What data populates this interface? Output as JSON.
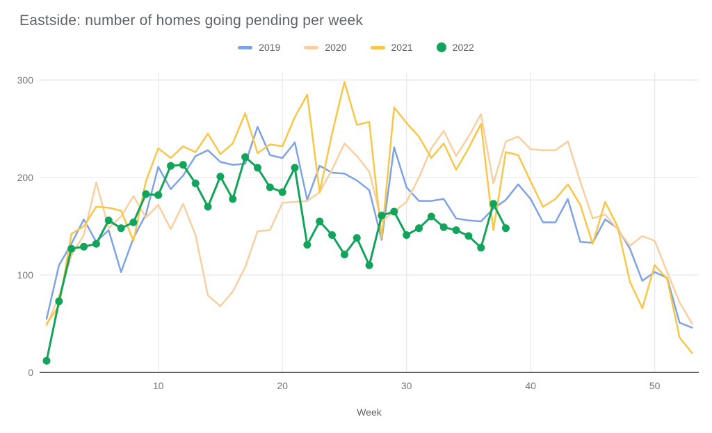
{
  "title": "Eastside: number of homes going pending per week",
  "legend": [
    {
      "label": "2019",
      "marker": "line"
    },
    {
      "label": "2020",
      "marker": "line"
    },
    {
      "label": "2021",
      "marker": "line"
    },
    {
      "label": "2022",
      "marker": "circle"
    }
  ],
  "colors": {
    "series_2019": "#7da3e6",
    "series_2020": "#f8cfa0",
    "series_2021": "#f8c648",
    "series_2022": "#12a45b",
    "gridline": "#e3e3e3",
    "axis_line": "#5f6368",
    "tick_text": "#757575",
    "title_text": "#5f6368",
    "axis_title_text": "#5f6368"
  },
  "chart_data": {
    "type": "line",
    "title": "Eastside: number of homes going pending per week",
    "xlabel": "Week",
    "ylabel": "",
    "x_start_week": 1,
    "x_step": 1,
    "xlim": [
      1,
      53
    ],
    "ylim": [
      0,
      300
    ],
    "x_ticks": [
      10,
      20,
      30,
      40,
      50
    ],
    "y_ticks": [
      0,
      100,
      200,
      300
    ],
    "grid": true,
    "legend_position": "top",
    "series": [
      {
        "name": "2019",
        "style": "line",
        "values": [
          55,
          110,
          132,
          157,
          134,
          146,
          103,
          138,
          162,
          211,
          188,
          202,
          222,
          228,
          216,
          213,
          214,
          252,
          223,
          220,
          236,
          177,
          212,
          205,
          204,
          197,
          187,
          136,
          231,
          190,
          176,
          176,
          178,
          158,
          156,
          155,
          168,
          177,
          193,
          178,
          154,
          154,
          178,
          134,
          133,
          157,
          148,
          127,
          94,
          103,
          97,
          51,
          46
        ]
      },
      {
        "name": "2020",
        "style": "line",
        "values": [
          48,
          78,
          120,
          141,
          195,
          148,
          160,
          181,
          159,
          172,
          147,
          173,
          141,
          79,
          68,
          83,
          108,
          145,
          146,
          174,
          175,
          176,
          185,
          208,
          235,
          222,
          206,
          155,
          165,
          175,
          200,
          230,
          248,
          222,
          242,
          265,
          194,
          237,
          242,
          229,
          228,
          228,
          237,
          196,
          158,
          162,
          147,
          130,
          140,
          135,
          103,
          72,
          50
        ]
      },
      {
        "name": "2021",
        "style": "line",
        "values": [
          50,
          68,
          142,
          150,
          170,
          169,
          166,
          135,
          196,
          230,
          220,
          232,
          226,
          245,
          224,
          235,
          266,
          225,
          234,
          232,
          262,
          285,
          185,
          245,
          298,
          254,
          257,
          138,
          272,
          256,
          242,
          220,
          235,
          208,
          230,
          255,
          146,
          226,
          223,
          196,
          170,
          178,
          193,
          172,
          132,
          175,
          150,
          93,
          66,
          110,
          96,
          36,
          20
        ]
      },
      {
        "name": "2022",
        "style": "line_with_points",
        "values": [
          12,
          73,
          127,
          129,
          132,
          156,
          148,
          154,
          183,
          182,
          212,
          213,
          194,
          170,
          201,
          178,
          221,
          210,
          190,
          185,
          210,
          131,
          155,
          141,
          121,
          138,
          110,
          161,
          165,
          141,
          148,
          160,
          149,
          146,
          140,
          128,
          173,
          148
        ]
      }
    ]
  }
}
